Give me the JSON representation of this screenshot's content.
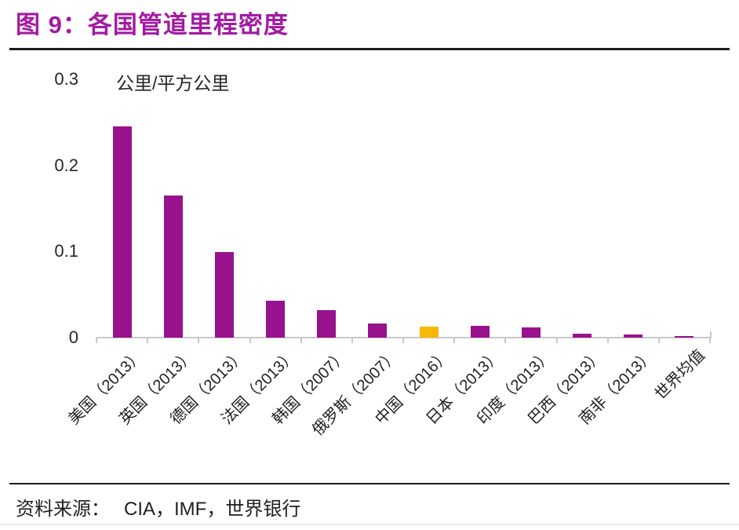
{
  "header": {
    "title": "图 9：各国管道里程密度",
    "title_color": "#A21AA2"
  },
  "chart_data": {
    "type": "bar",
    "title": "各国管道里程密度",
    "categories": [
      "美国（2013）",
      "英国（2013）",
      "德国（2013）",
      "法国（2013）",
      "韩国（2007）",
      "俄罗斯（2007）",
      "中国（2016）",
      "日本（2013）",
      "印度（2013）",
      "巴西（2013）",
      "南非（2013）",
      "世界均值"
    ],
    "values": [
      0.245,
      0.165,
      0.099,
      0.043,
      0.032,
      0.016,
      0.013,
      0.014,
      0.012,
      0.005,
      0.004,
      0.002
    ],
    "highlight_index": 6,
    "bar_color": "#97128C",
    "highlight_color": "#F8B709",
    "xlabel": "",
    "ylabel": "公里/平方公里",
    "ylim": [
      0,
      0.3
    ],
    "y_ticks": [
      0,
      0.1,
      0.2,
      0.3
    ],
    "y_tick_labels": [
      "0",
      "0.1",
      "0.2",
      "0.3"
    ],
    "grid": false,
    "legend": "none",
    "axis_color": "#C9C9C9"
  },
  "footer": {
    "source_label": "资料来源：",
    "source_text": "CIA，IMF，世界银行"
  }
}
